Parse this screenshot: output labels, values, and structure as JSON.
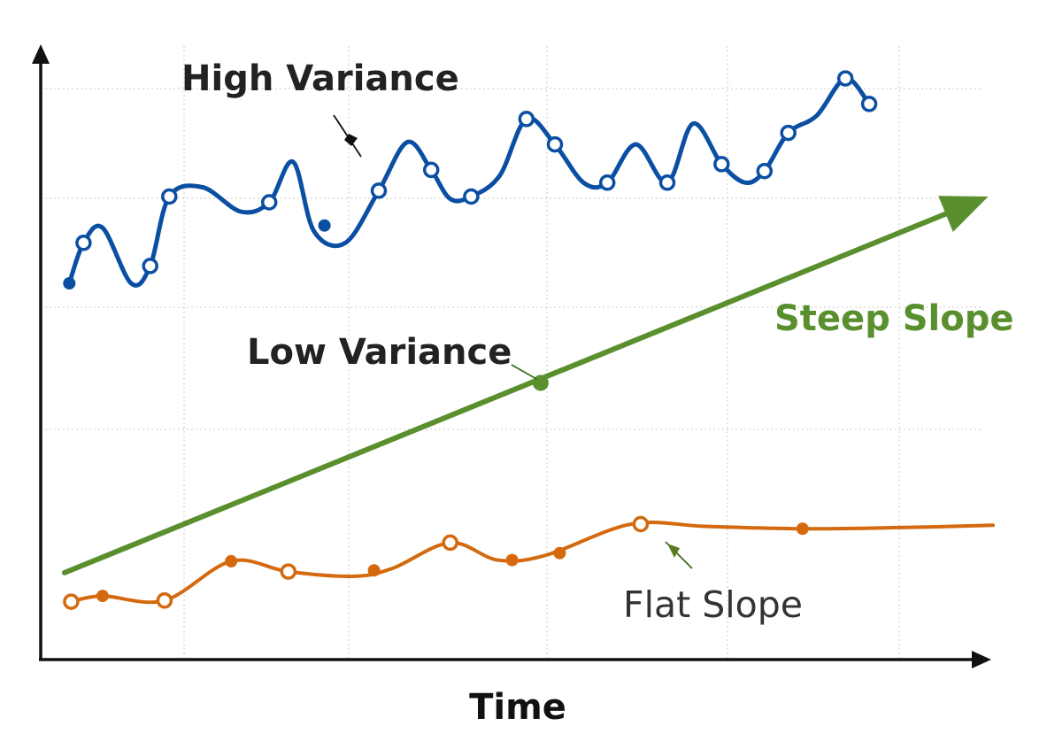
{
  "chart_data": {
    "type": "line",
    "title": "",
    "xlabel": "Time",
    "ylabel": "",
    "x_ticks": [],
    "y_ticks": [],
    "grid": true,
    "annotations": [
      {
        "text": "High Variance",
        "series": "high"
      },
      {
        "text": "Low Variance",
        "series": "steep"
      },
      {
        "text": "Steep Slope",
        "series": "steep"
      },
      {
        "text": "Flat Slope",
        "series": "flat"
      }
    ],
    "series": [
      {
        "key": "high",
        "color": "#0b4fa3",
        "smooth": true,
        "curve": [
          [
            0.3,
            3.25
          ],
          [
            0.45,
            3.6
          ],
          [
            0.65,
            3.73
          ],
          [
            0.95,
            3.25
          ],
          [
            1.15,
            3.4
          ],
          [
            1.35,
            4.0
          ],
          [
            1.7,
            4.08
          ],
          [
            2.1,
            3.87
          ],
          [
            2.4,
            3.95
          ],
          [
            2.65,
            4.3
          ],
          [
            2.87,
            3.7
          ],
          [
            3.2,
            3.6
          ],
          [
            3.55,
            4.05
          ],
          [
            3.85,
            4.47
          ],
          [
            4.1,
            4.23
          ],
          [
            4.3,
            3.98
          ],
          [
            4.52,
            4.0
          ],
          [
            4.82,
            4.18
          ],
          [
            5.1,
            4.67
          ],
          [
            5.4,
            4.45
          ],
          [
            5.7,
            4.12
          ],
          [
            5.95,
            4.12
          ],
          [
            6.25,
            4.45
          ],
          [
            6.58,
            4.12
          ],
          [
            6.85,
            4.63
          ],
          [
            7.15,
            4.28
          ],
          [
            7.4,
            4.12
          ],
          [
            7.6,
            4.22
          ],
          [
            7.85,
            4.55
          ],
          [
            8.15,
            4.7
          ],
          [
            8.45,
            5.02
          ],
          [
            8.7,
            4.8
          ]
        ],
        "points": [
          {
            "x": 0.3,
            "y": 3.25,
            "filled": true
          },
          {
            "x": 0.45,
            "y": 3.6,
            "filled": false
          },
          {
            "x": 1.15,
            "y": 3.4,
            "filled": false
          },
          {
            "x": 1.35,
            "y": 4.0,
            "filled": false
          },
          {
            "x": 2.4,
            "y": 3.95,
            "filled": false
          },
          {
            "x": 2.98,
            "y": 3.75,
            "filled": true
          },
          {
            "x": 3.55,
            "y": 4.05,
            "filled": false
          },
          {
            "x": 4.1,
            "y": 4.23,
            "filled": false
          },
          {
            "x": 4.52,
            "y": 4.0,
            "filled": false
          },
          {
            "x": 5.1,
            "y": 4.67,
            "filled": false
          },
          {
            "x": 5.4,
            "y": 4.45,
            "filled": false
          },
          {
            "x": 5.95,
            "y": 4.12,
            "filled": false
          },
          {
            "x": 6.58,
            "y": 4.12,
            "filled": false
          },
          {
            "x": 7.15,
            "y": 4.28,
            "filled": false
          },
          {
            "x": 7.6,
            "y": 4.22,
            "filled": false
          },
          {
            "x": 7.85,
            "y": 4.55,
            "filled": false
          },
          {
            "x": 8.45,
            "y": 5.02,
            "filled": false
          },
          {
            "x": 8.7,
            "y": 4.8,
            "filled": false
          }
        ]
      },
      {
        "key": "steep",
        "color": "#5a8f2e",
        "smooth": false,
        "arrow_end": true,
        "curve": [
          [
            0.25,
            0.75
          ],
          [
            9.95,
            4.0
          ]
        ],
        "points": [
          {
            "x": 5.25,
            "y": 2.39,
            "filled": true
          }
        ]
      },
      {
        "key": "flat",
        "color": "#d4690e",
        "smooth": true,
        "curve": [
          [
            0.32,
            0.5
          ],
          [
            0.65,
            0.55
          ],
          [
            1.3,
            0.51
          ],
          [
            2.0,
            0.85
          ],
          [
            2.6,
            0.76
          ],
          [
            3.3,
            0.72
          ],
          [
            3.7,
            0.79
          ],
          [
            4.3,
            1.01
          ],
          [
            4.8,
            0.86
          ],
          [
            5.3,
            0.9
          ],
          [
            6.2,
            1.17
          ],
          [
            7.0,
            1.15
          ],
          [
            8.0,
            1.13
          ],
          [
            9.0,
            1.14
          ],
          [
            10.0,
            1.16
          ]
        ],
        "points": [
          {
            "x": 0.32,
            "y": 0.5,
            "filled": false
          },
          {
            "x": 0.65,
            "y": 0.55,
            "filled": true
          },
          {
            "x": 1.3,
            "y": 0.51,
            "filled": false
          },
          {
            "x": 2.0,
            "y": 0.85,
            "filled": true
          },
          {
            "x": 2.6,
            "y": 0.76,
            "filled": false
          },
          {
            "x": 3.5,
            "y": 0.77,
            "filled": true
          },
          {
            "x": 4.3,
            "y": 1.01,
            "filled": false
          },
          {
            "x": 4.95,
            "y": 0.86,
            "filled": true
          },
          {
            "x": 5.45,
            "y": 0.92,
            "filled": true
          },
          {
            "x": 6.3,
            "y": 1.17,
            "filled": false
          },
          {
            "x": 8.0,
            "y": 1.13,
            "filled": true
          }
        ]
      }
    ],
    "xlim": [
      0,
      10
    ],
    "ylim": [
      0,
      5.3
    ]
  }
}
